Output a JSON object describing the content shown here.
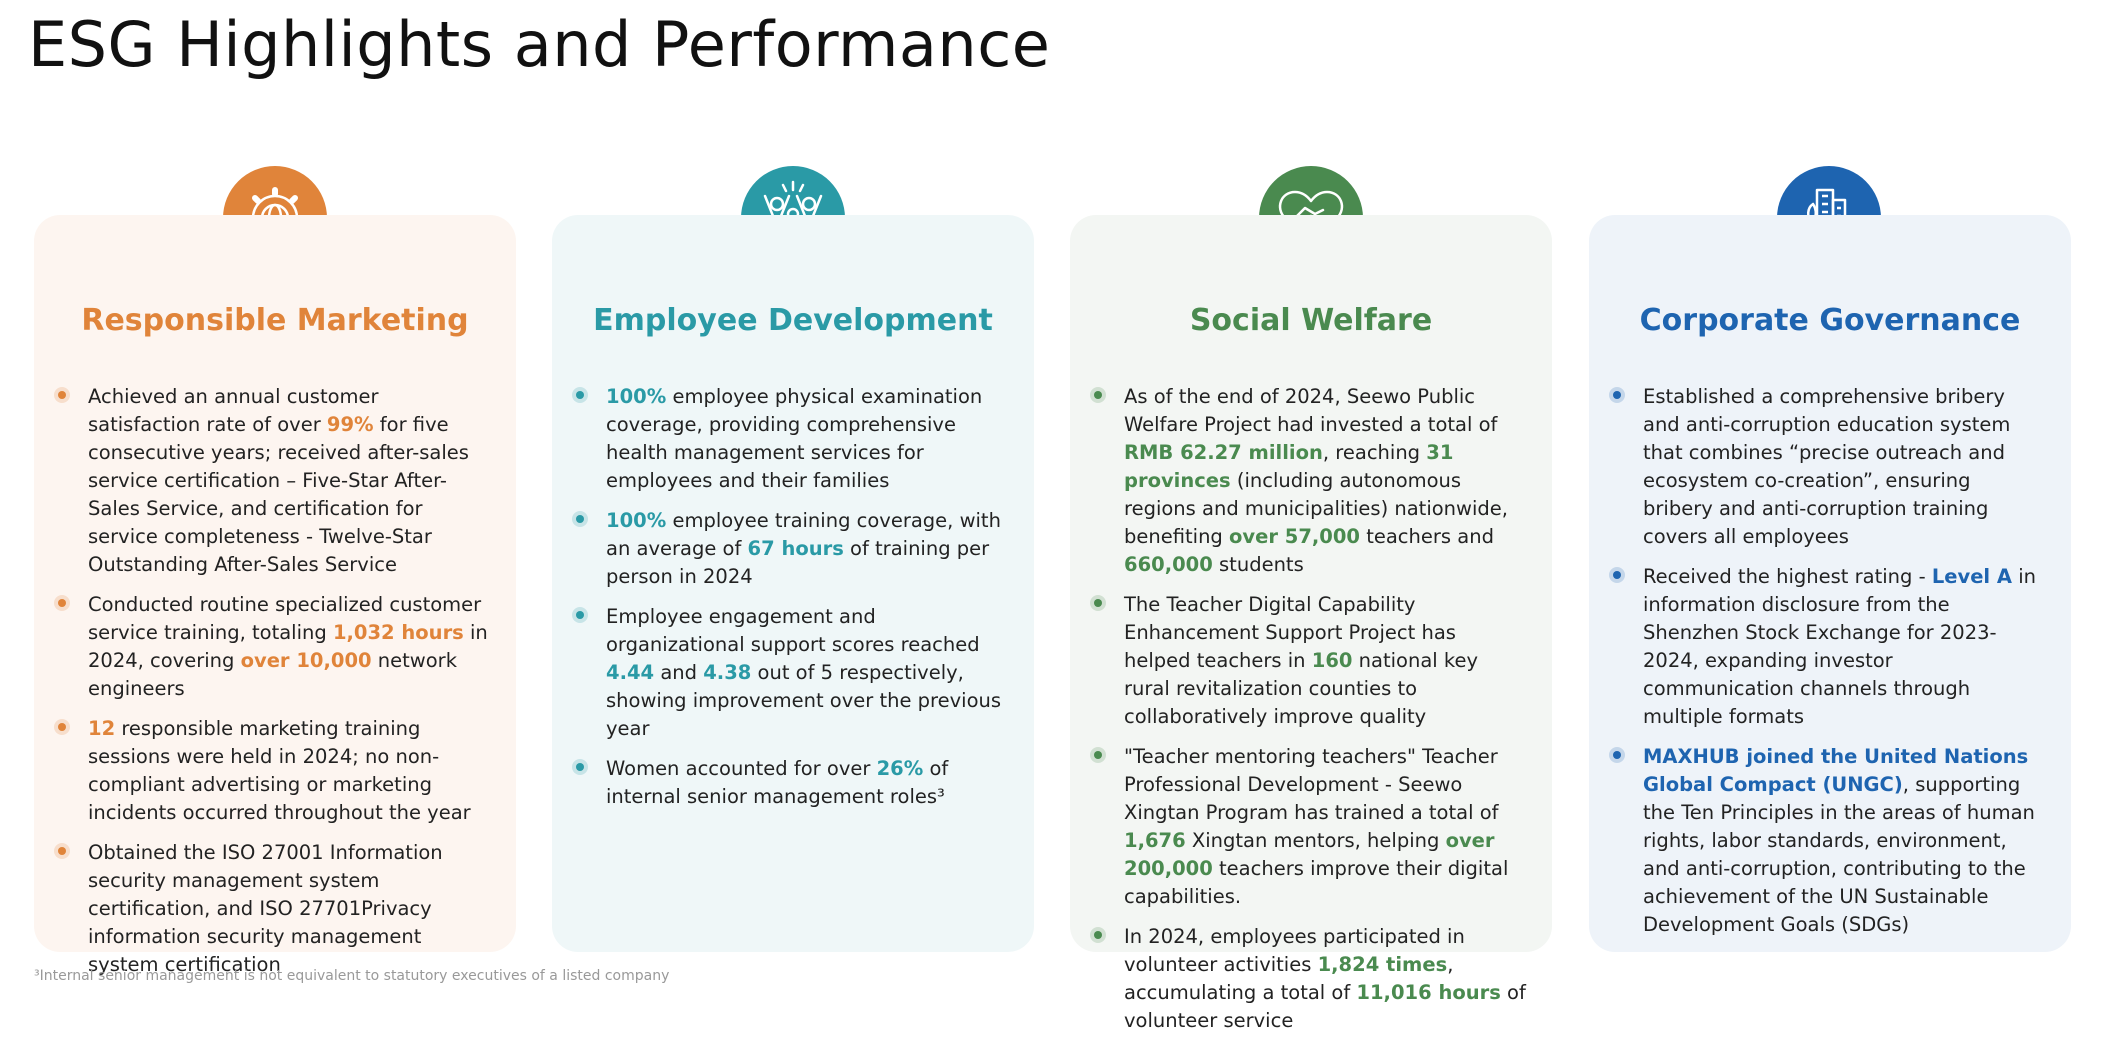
{
  "title": "ESG Highlights and Performance",
  "cards": [
    {
      "title": "Responsible Marketing",
      "color": "#e0843a",
      "background": "#fdf5f0",
      "items": [
        [
          "Achieved an annual customer satisfaction rate of over ",
          {
            "strong": "99%"
          },
          " for five consecutive years; received after-sales service certification – Five-Star After-Sales Service, and certification for service completeness - Twelve-Star Outstanding After-Sales Service"
        ],
        [
          "Conducted routine specialized customer service training, totaling ",
          {
            "strong": "1,032 hours"
          },
          " in 2024, covering ",
          {
            "strong": "over 10,000"
          },
          " network engineers"
        ],
        [
          {
            "strong": "12"
          },
          " responsible marketing training sessions were held in 2024; no non-compliant advertising or marketing incidents occurred throughout the year"
        ],
        [
          "Obtained the ISO 27001 Information security management system certification, and ISO 27701Privacy information security management system certification"
        ]
      ]
    },
    {
      "title": "Employee Development",
      "color": "#2a9aa6",
      "background": "#eff7f8",
      "items": [
        [
          {
            "strong": "100%"
          },
          " employee physical examination coverage, providing comprehensive health management services for employees and their families"
        ],
        [
          {
            "strong": "100%"
          },
          " employee training coverage, with an average of ",
          {
            "strong": "67 hours"
          },
          " of training per person in 2024"
        ],
        [
          "Employee engagement and organizational support scores reached ",
          {
            "strong": "4.44"
          },
          " and ",
          {
            "strong": "4.38"
          },
          " out of 5 respectively, showing improvement over the previous year"
        ],
        [
          "Women accounted for over ",
          {
            "strong": "26%"
          },
          " of internal senior management roles³"
        ]
      ]
    },
    {
      "title": "Social Welfare",
      "color": "#4a8a4f",
      "background": "#f3f6f3",
      "items": [
        [
          "As of the end of 2024, Seewo Public Welfare Project had invested a total of ",
          {
            "strong": "RMB 62.27 million"
          },
          ", reaching ",
          {
            "strong": "31 provinces"
          },
          " (including autonomous regions and municipalities) nationwide, benefiting ",
          {
            "strong": "over 57,000"
          },
          " teachers and ",
          {
            "strong": "660,000"
          },
          " students"
        ],
        [
          "The Teacher Digital Capability Enhancement Support Project has helped teachers in ",
          {
            "strong": "160"
          },
          " national key rural revitalization counties to collaboratively improve quality"
        ],
        [
          "\"Teacher mentoring teachers\" Teacher Professional Development - Seewo Xingtan Program has trained a total of ",
          {
            "strong": "1,676"
          },
          " Xingtan mentors, helping ",
          {
            "strong": "over 200,000"
          },
          " teachers improve their digital capabilities."
        ],
        [
          "In 2024, employees participated in volunteer activities ",
          {
            "strong": "1,824 times"
          },
          ", accumulating a total of ",
          {
            "strong": "11,016 hours"
          },
          " of volunteer service"
        ]
      ]
    },
    {
      "title": "Corporate Governance",
      "color": "#1e64b0",
      "background": "#eef3f9",
      "items": [
        [
          "Established a comprehensive bribery and anti-corruption education system that combines “precise outreach and ecosystem co-creation”, ensuring bribery and anti-corruption training covers all employees"
        ],
        [
          "Received the highest rating - ",
          {
            "strong": "Level A"
          },
          " in information disclosure from the Shenzhen Stock Exchange for 2023-2024, expanding investor communication channels through multiple formats"
        ],
        [
          {
            "strong": "MAXHUB joined the United Nations Global Compact (UNGC)"
          },
          ", supporting the Ten Principles in the areas of human rights, labor standards, environment, and anti-corruption, contributing to the achievement of the UN Sustainable Development Goals (SDGs)"
        ]
      ]
    }
  ],
  "footnote": "³Internal senior management is not equivalent to statutory executives of a listed company"
}
